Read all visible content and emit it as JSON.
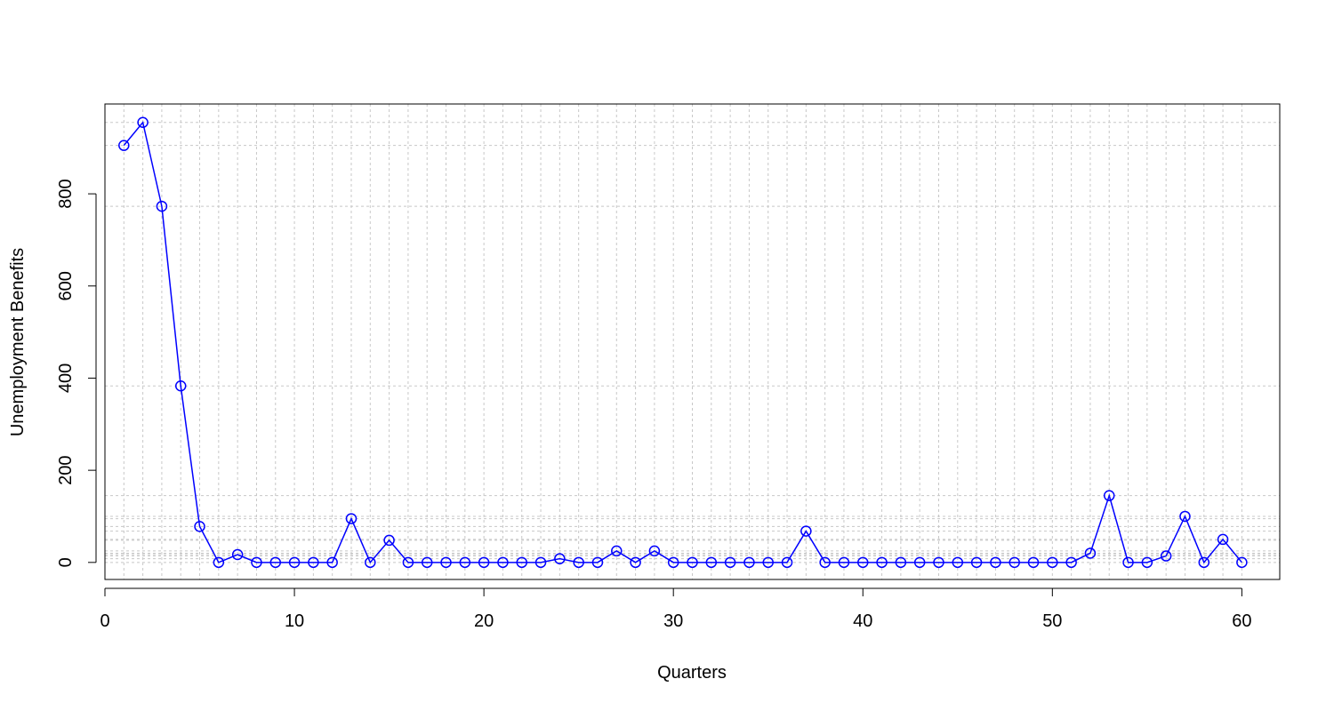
{
  "chart_data": {
    "type": "line",
    "title": "",
    "xlabel": "Quarters",
    "ylabel": "Unemployment Benefits",
    "xlim": [
      0,
      62
    ],
    "ylim": [
      -37,
      995
    ],
    "xticks": [
      0,
      10,
      20,
      30,
      40,
      50,
      60
    ],
    "yticks": [
      0,
      200,
      400,
      600,
      800
    ],
    "grid": true,
    "markers": "open-circle",
    "series_color": "#0000ff",
    "grid_color": "#c8c8c8",
    "series": [
      {
        "x": [
          1,
          2,
          3,
          4,
          5,
          6,
          7,
          8,
          9,
          10,
          11,
          12,
          13,
          14,
          15,
          16,
          17,
          18,
          19,
          20,
          21,
          22,
          23,
          24,
          25,
          26,
          27,
          28,
          29,
          30,
          31,
          32,
          33,
          34,
          35,
          36,
          37,
          38,
          39,
          40,
          41,
          42,
          43,
          44,
          45,
          46,
          47,
          48,
          49,
          50,
          51,
          52,
          53,
          54,
          55,
          56,
          57,
          58,
          59,
          60
        ],
        "values": [
          905,
          955,
          773,
          383,
          78,
          0,
          17,
          0,
          0,
          0,
          0,
          0,
          95,
          0,
          48,
          0,
          0,
          0,
          0,
          0,
          0,
          0,
          0,
          8,
          0,
          0,
          25,
          0,
          25,
          0,
          0,
          0,
          0,
          0,
          0,
          0,
          68,
          0,
          0,
          0,
          0,
          0,
          0,
          0,
          0,
          0,
          0,
          0,
          0,
          0,
          0,
          20,
          145,
          0,
          0,
          14,
          100,
          0,
          50,
          0
        ]
      }
    ]
  }
}
